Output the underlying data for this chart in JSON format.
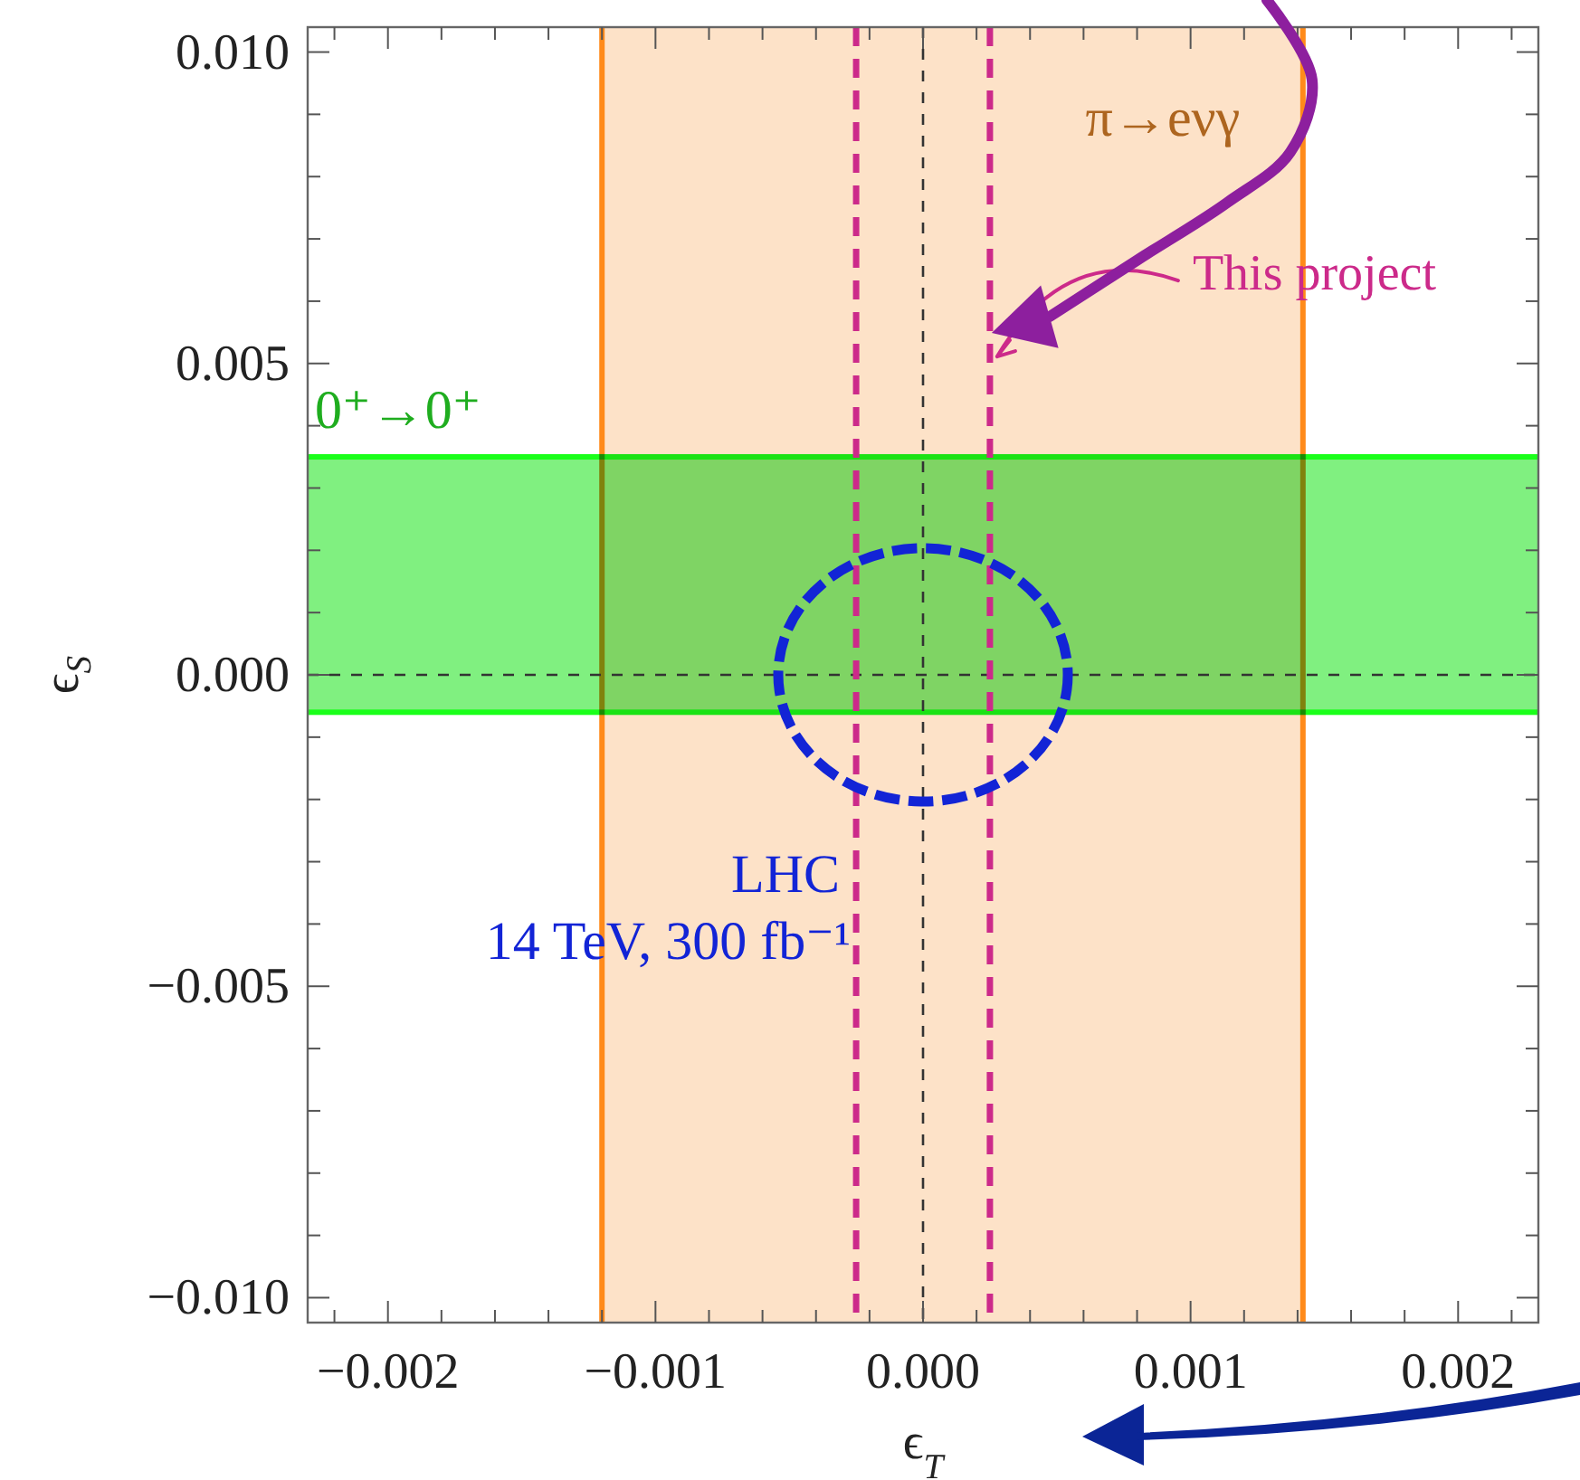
{
  "chart_data": {
    "type": "line",
    "xlabel": "ϵ$_{T}$",
    "ylabel": "ϵ$_{S}$",
    "xlim": [
      -0.0023,
      0.0023
    ],
    "ylim": [
      -0.0104,
      0.0104
    ],
    "xticks": [
      {
        "value": -0.0022,
        "label": null
      },
      {
        "value": -0.002,
        "label": "−0.002"
      },
      {
        "value": -0.0018,
        "label": null
      },
      {
        "value": -0.0016,
        "label": null
      },
      {
        "value": -0.0014,
        "label": null
      },
      {
        "value": -0.0012,
        "label": null
      },
      {
        "value": -0.001,
        "label": "−0.001"
      },
      {
        "value": -0.0008,
        "label": null
      },
      {
        "value": -0.0006,
        "label": null
      },
      {
        "value": -0.0004,
        "label": null
      },
      {
        "value": -0.0002,
        "label": null
      },
      {
        "value": 0,
        "label": "0.000"
      },
      {
        "value": 0.0002,
        "label": null
      },
      {
        "value": 0.0004,
        "label": null
      },
      {
        "value": 0.0006,
        "label": null
      },
      {
        "value": 0.0008,
        "label": null
      },
      {
        "value": 0.001,
        "label": "0.001"
      },
      {
        "value": 0.0012,
        "label": null
      },
      {
        "value": 0.0014,
        "label": null
      },
      {
        "value": 0.0016,
        "label": null
      },
      {
        "value": 0.0018,
        "label": null
      },
      {
        "value": 0.002,
        "label": "0.002"
      },
      {
        "value": 0.0022,
        "label": null
      }
    ],
    "yticks": [
      {
        "value": -0.01,
        "label": "−0.010"
      },
      {
        "value": -0.009,
        "label": null
      },
      {
        "value": -0.008,
        "label": null
      },
      {
        "value": -0.007,
        "label": null
      },
      {
        "value": -0.006,
        "label": null
      },
      {
        "value": -0.005,
        "label": "−0.005"
      },
      {
        "value": -0.004,
        "label": null
      },
      {
        "value": -0.003,
        "label": null
      },
      {
        "value": -0.002,
        "label": null
      },
      {
        "value": -0.001,
        "label": null
      },
      {
        "value": 0,
        "label": "0.000"
      },
      {
        "value": 0.001,
        "label": null
      },
      {
        "value": 0.002,
        "label": null
      },
      {
        "value": 0.003,
        "label": null
      },
      {
        "value": 0.004,
        "label": null
      },
      {
        "value": 0.005,
        "label": "0.005"
      },
      {
        "value": 0.006,
        "label": null
      },
      {
        "value": 0.007,
        "label": null
      },
      {
        "value": 0.008,
        "label": null
      },
      {
        "value": 0.009,
        "label": null
      },
      {
        "value": 0.01,
        "label": "0.010"
      }
    ],
    "bands": [
      {
        "axis": "x",
        "from": -0.0012,
        "to": 0.00142,
        "label": "π→eνγ",
        "color": "#fde2c8"
      },
      {
        "axis": "y",
        "from": -0.0006,
        "to": 0.0035,
        "label": "0⁺→0⁺",
        "color": "#80f080"
      }
    ],
    "ref_lines": [
      {
        "axis": "x",
        "value": 0,
        "color": "#333333",
        "line_style": "dashed"
      },
      {
        "axis": "y",
        "value": 0,
        "color": "#333333",
        "line_style": "dashed"
      },
      {
        "axis": "x",
        "value": -0.00025,
        "color": "#cc2a8a",
        "line_style": "dashed"
      },
      {
        "axis": "x",
        "value": 0.00025,
        "label": "This project",
        "color": "#cc2a8a",
        "line_style": "dashed"
      }
    ],
    "annotations": [
      "LHC",
      "14 TeV, 300 fb⁻¹"
    ]
  }
}
